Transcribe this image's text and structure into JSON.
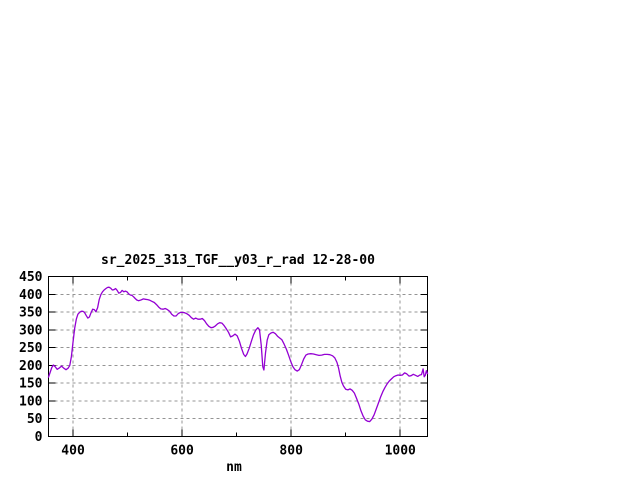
{
  "window": {
    "background_color": "#ffffff"
  },
  "chart_data": {
    "type": "line",
    "title": "sr_2025_313_TGF__y03_r_rad 12-28-00",
    "xlabel": "nm",
    "ylabel": "",
    "xlim": [
      355,
      1050
    ],
    "ylim": [
      0,
      450
    ],
    "x_ticks": [
      400,
      600,
      800,
      1000
    ],
    "x_tick_labels": [
      "400",
      "600",
      "800",
      "1000"
    ],
    "x_minor_ticks": [
      500,
      700,
      900
    ],
    "y_ticks": [
      0,
      50,
      100,
      150,
      200,
      250,
      300,
      350,
      400,
      450
    ],
    "y_tick_labels": [
      "0",
      "50",
      "100",
      "150",
      "200",
      "250",
      "300",
      "350",
      "400",
      "450"
    ],
    "grid": true,
    "grid_style": "dashed",
    "legend_position": "none",
    "line_color": "#9400d3",
    "grid_color": "#949494",
    "border_color": "#000000",
    "series": [
      {
        "name": "sr_2025_313_TGF__y03_r_rad",
        "points": [
          [
            355,
            167
          ],
          [
            358,
            180
          ],
          [
            361,
            194
          ],
          [
            364,
            201
          ],
          [
            367,
            197
          ],
          [
            371,
            189
          ],
          [
            375,
            193
          ],
          [
            379,
            198
          ],
          [
            383,
            192
          ],
          [
            387,
            188
          ],
          [
            391,
            192
          ],
          [
            394,
            200
          ],
          [
            397,
            225
          ],
          [
            400,
            265
          ],
          [
            403,
            305
          ],
          [
            406,
            330
          ],
          [
            409,
            344
          ],
          [
            412,
            349
          ],
          [
            415,
            352
          ],
          [
            418,
            352
          ],
          [
            421,
            349
          ],
          [
            424,
            341
          ],
          [
            427,
            333
          ],
          [
            430,
            336
          ],
          [
            433,
            348
          ],
          [
            436,
            358
          ],
          [
            439,
            357
          ],
          [
            442,
            351
          ],
          [
            445,
            362
          ],
          [
            448,
            385
          ],
          [
            451,
            399
          ],
          [
            454,
            407
          ],
          [
            457,
            412
          ],
          [
            460,
            416
          ],
          [
            463,
            419
          ],
          [
            466,
            420
          ],
          [
            469,
            417
          ],
          [
            472,
            412
          ],
          [
            475,
            413
          ],
          [
            478,
            416
          ],
          [
            481,
            411
          ],
          [
            484,
            403
          ],
          [
            487,
            405
          ],
          [
            490,
            411
          ],
          [
            493,
            407
          ],
          [
            496,
            409
          ],
          [
            499,
            407
          ],
          [
            502,
            401
          ],
          [
            505,
            398
          ],
          [
            508,
            397
          ],
          [
            511,
            393
          ],
          [
            514,
            388
          ],
          [
            517,
            384
          ],
          [
            520,
            382
          ],
          [
            523,
            383
          ],
          [
            526,
            385
          ],
          [
            529,
            387
          ],
          [
            533,
            386
          ],
          [
            537,
            385
          ],
          [
            541,
            383
          ],
          [
            545,
            380
          ],
          [
            549,
            377
          ],
          [
            553,
            371
          ],
          [
            557,
            364
          ],
          [
            561,
            359
          ],
          [
            565,
            358
          ],
          [
            569,
            360
          ],
          [
            573,
            357
          ],
          [
            577,
            352
          ],
          [
            581,
            344
          ],
          [
            585,
            339
          ],
          [
            589,
            339
          ],
          [
            593,
            346
          ],
          [
            597,
            349
          ],
          [
            601,
            349
          ],
          [
            605,
            348
          ],
          [
            609,
            345
          ],
          [
            613,
            341
          ],
          [
            617,
            334
          ],
          [
            621,
            330
          ],
          [
            625,
            333
          ],
          [
            629,
            330
          ],
          [
            633,
            330
          ],
          [
            637,
            332
          ],
          [
            641,
            326
          ],
          [
            645,
            317
          ],
          [
            649,
            310
          ],
          [
            653,
            306
          ],
          [
            657,
            307
          ],
          [
            661,
            311
          ],
          [
            665,
            317
          ],
          [
            669,
            320
          ],
          [
            673,
            319
          ],
          [
            677,
            312
          ],
          [
            681,
            303
          ],
          [
            685,
            293
          ],
          [
            689,
            280
          ],
          [
            693,
            283
          ],
          [
            697,
            288
          ],
          [
            701,
            283
          ],
          [
            705,
            268
          ],
          [
            709,
            248
          ],
          [
            713,
            231
          ],
          [
            716,
            225
          ],
          [
            719,
            232
          ],
          [
            723,
            248
          ],
          [
            727,
            268
          ],
          [
            731,
            286
          ],
          [
            735,
            299
          ],
          [
            739,
            306
          ],
          [
            742,
            300
          ],
          [
            745,
            258
          ],
          [
            748,
            196
          ],
          [
            750,
            187
          ],
          [
            753,
            235
          ],
          [
            756,
            271
          ],
          [
            759,
            286
          ],
          [
            763,
            291
          ],
          [
            767,
            293
          ],
          [
            771,
            289
          ],
          [
            775,
            282
          ],
          [
            779,
            277
          ],
          [
            783,
            272
          ],
          [
            787,
            260
          ],
          [
            791,
            246
          ],
          [
            795,
            230
          ],
          [
            799,
            212
          ],
          [
            803,
            197
          ],
          [
            807,
            188
          ],
          [
            811,
            184
          ],
          [
            815,
            188
          ],
          [
            819,
            202
          ],
          [
            823,
            218
          ],
          [
            827,
            229
          ],
          [
            831,
            232
          ],
          [
            836,
            233
          ],
          [
            841,
            232
          ],
          [
            846,
            230
          ],
          [
            851,
            228
          ],
          [
            856,
            229
          ],
          [
            861,
            231
          ],
          [
            866,
            231
          ],
          [
            871,
            230
          ],
          [
            876,
            227
          ],
          [
            880,
            221
          ],
          [
            884,
            208
          ],
          [
            887,
            192
          ],
          [
            890,
            170
          ],
          [
            893,
            152
          ],
          [
            896,
            142
          ],
          [
            900,
            133
          ],
          [
            904,
            131
          ],
          [
            908,
            134
          ],
          [
            912,
            130
          ],
          [
            916,
            122
          ],
          [
            920,
            107
          ],
          [
            924,
            91
          ],
          [
            928,
            72
          ],
          [
            932,
            57
          ],
          [
            936,
            47
          ],
          [
            940,
            43
          ],
          [
            944,
            42
          ],
          [
            948,
            49
          ],
          [
            952,
            61
          ],
          [
            956,
            77
          ],
          [
            960,
            94
          ],
          [
            964,
            111
          ],
          [
            968,
            126
          ],
          [
            972,
            138
          ],
          [
            976,
            148
          ],
          [
            980,
            156
          ],
          [
            984,
            162
          ],
          [
            988,
            168
          ],
          [
            992,
            171
          ],
          [
            996,
            173
          ],
          [
            1000,
            172
          ],
          [
            1004,
            173
          ],
          [
            1008,
            179
          ],
          [
            1012,
            176
          ],
          [
            1016,
            170
          ],
          [
            1020,
            171
          ],
          [
            1024,
            175
          ],
          [
            1028,
            172
          ],
          [
            1032,
            169
          ],
          [
            1036,
            173
          ],
          [
            1039,
            174
          ],
          [
            1042,
            190
          ],
          [
            1044,
            168
          ],
          [
            1046,
            172
          ],
          [
            1048,
            185
          ],
          [
            1050,
            177
          ]
        ]
      }
    ]
  }
}
